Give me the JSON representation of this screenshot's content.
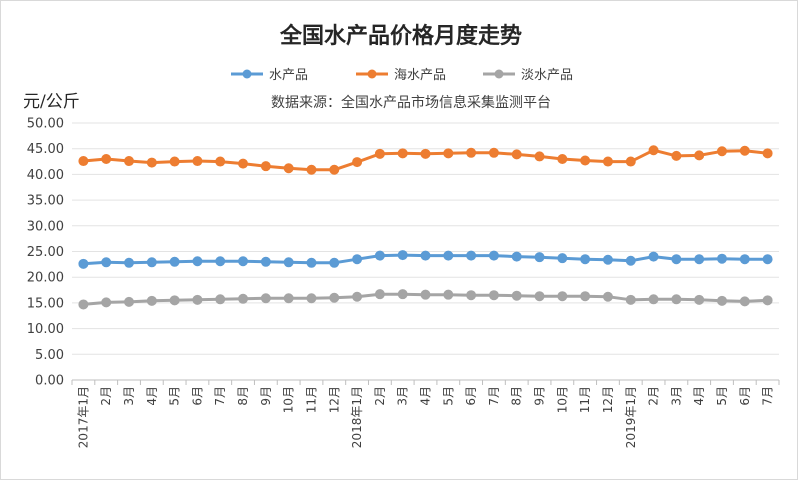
{
  "chart_data": {
    "type": "line",
    "title": "全国水产品价格月度走势",
    "unit_label": "元/公斤",
    "source": "数据来源：全国水产品市场信息采集监测平台",
    "x": [
      "2017年1月",
      "2月",
      "3月",
      "4月",
      "5月",
      "6月",
      "7月",
      "8月",
      "9月",
      "10月",
      "11月",
      "12月",
      "2018年1月",
      "2月",
      "3月",
      "4月",
      "5月",
      "6月",
      "7月",
      "8月",
      "9月",
      "10月",
      "11月",
      "12月",
      "2019年1月",
      "2月",
      "3月",
      "4月",
      "5月",
      "6月",
      "7月"
    ],
    "ylim": [
      0,
      50
    ],
    "yticks": [
      "0.00",
      "5.00",
      "10.00",
      "15.00",
      "20.00",
      "25.00",
      "30.00",
      "35.00",
      "40.00",
      "45.00",
      "50.00"
    ],
    "grid": true,
    "legend_position": "top-center",
    "series": [
      {
        "name": "水产品",
        "color": "#5b9bd5",
        "values": [
          22.6,
          22.9,
          22.8,
          22.9,
          23.0,
          23.1,
          23.1,
          23.1,
          23.0,
          22.9,
          22.8,
          22.8,
          23.5,
          24.2,
          24.3,
          24.2,
          24.2,
          24.2,
          24.2,
          24.0,
          23.9,
          23.7,
          23.5,
          23.4,
          23.2,
          24.0,
          23.5,
          23.5,
          23.6,
          23.5,
          23.5
        ]
      },
      {
        "name": "海水产品",
        "color": "#ed7d31",
        "values": [
          42.6,
          43.0,
          42.6,
          42.3,
          42.5,
          42.6,
          42.5,
          42.1,
          41.6,
          41.2,
          40.9,
          40.9,
          42.4,
          44.0,
          44.1,
          44.0,
          44.1,
          44.2,
          44.2,
          43.9,
          43.5,
          43.0,
          42.7,
          42.5,
          42.5,
          44.7,
          43.6,
          43.7,
          44.5,
          44.6,
          44.1
        ]
      },
      {
        "name": "淡水产品",
        "color": "#a5a5a5",
        "values": [
          14.7,
          15.1,
          15.2,
          15.4,
          15.5,
          15.6,
          15.7,
          15.8,
          15.9,
          15.9,
          15.9,
          16.0,
          16.2,
          16.7,
          16.7,
          16.6,
          16.6,
          16.5,
          16.5,
          16.4,
          16.3,
          16.3,
          16.3,
          16.2,
          15.6,
          15.7,
          15.7,
          15.6,
          15.4,
          15.3,
          15.5
        ]
      }
    ]
  }
}
